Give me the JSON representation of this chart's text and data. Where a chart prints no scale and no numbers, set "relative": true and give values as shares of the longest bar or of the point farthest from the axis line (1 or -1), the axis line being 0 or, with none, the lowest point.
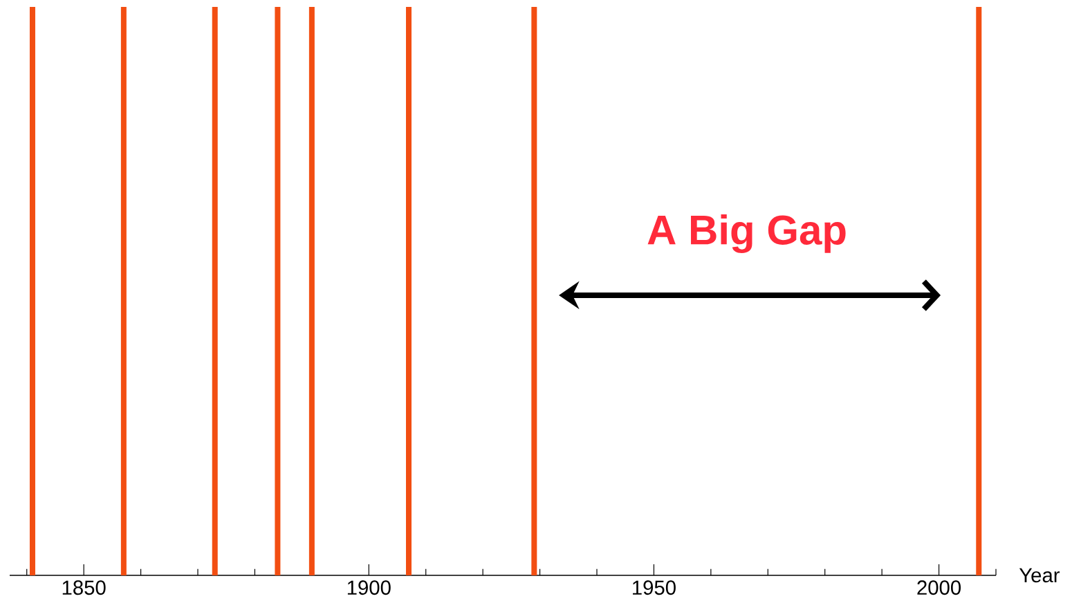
{
  "chart_data": {
    "type": "bar",
    "relative": true,
    "xlabel": "Year",
    "x": [
      1841,
      1857,
      1873,
      1884,
      1890,
      1907,
      1929,
      2007
    ],
    "values": [
      1,
      1,
      1,
      1,
      1,
      1,
      1,
      1
    ],
    "color": "#f24e12",
    "xlim": [
      1837,
      2010
    ],
    "xticks": [
      {
        "value": 1840,
        "label": null
      },
      1850,
      {
        "value": 1860,
        "label": null
      },
      {
        "value": 1870,
        "label": null
      },
      {
        "value": 1880,
        "label": null
      },
      {
        "value": 1890,
        "label": null
      },
      1900,
      {
        "value": 1910,
        "label": null
      },
      {
        "value": 1920,
        "label": null
      },
      {
        "value": 1930,
        "label": null
      },
      {
        "value": 1940,
        "label": null
      },
      1950,
      {
        "value": 1960,
        "label": null
      },
      {
        "value": 1970,
        "label": null
      },
      {
        "value": 1980,
        "label": null
      },
      {
        "value": 1990,
        "label": null
      },
      2000,
      {
        "value": 2010,
        "label": null
      }
    ],
    "annotations": [
      "A Big Gap"
    ],
    "grid": false
  }
}
